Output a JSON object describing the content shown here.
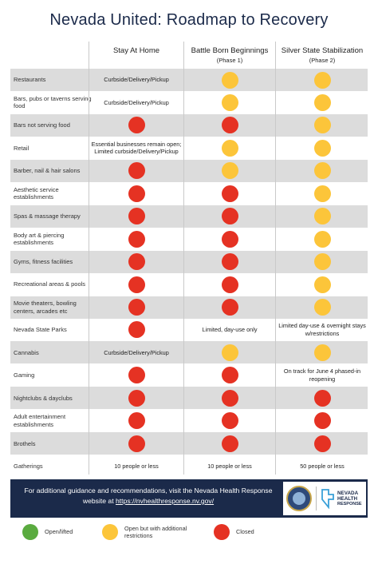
{
  "title": "Nevada United: Roadmap to Recovery",
  "columns": [
    {
      "main": "Stay At Home",
      "sub": ""
    },
    {
      "main": "Battle Born Beginnings",
      "sub": "(Phase 1)"
    },
    {
      "main": "Silver State Stabilization",
      "sub": "(Phase 2)"
    }
  ],
  "colors": {
    "red": "#e53223",
    "yellow": "#fcc53a",
    "green": "#5aab3f",
    "navy": "#1b2a4a"
  },
  "rows": [
    {
      "label": "Restaurants",
      "cells": [
        {
          "text": "Curbside/Delivery/Pickup"
        },
        {
          "dot": "yellow"
        },
        {
          "dot": "yellow"
        }
      ]
    },
    {
      "label": "Bars, pubs or taverns serving food",
      "cells": [
        {
          "text": "Curbside/Delivery/Pickup"
        },
        {
          "dot": "yellow"
        },
        {
          "dot": "yellow"
        }
      ]
    },
    {
      "label": "Bars not serving food",
      "cells": [
        {
          "dot": "red"
        },
        {
          "dot": "red"
        },
        {
          "dot": "yellow"
        }
      ]
    },
    {
      "label": "Retail",
      "cells": [
        {
          "text": "Essential businesses remain open; Limited curbside/Delivery/Pickup"
        },
        {
          "dot": "yellow"
        },
        {
          "dot": "yellow"
        }
      ]
    },
    {
      "label": "Barber, nail & hair salons",
      "cells": [
        {
          "dot": "red"
        },
        {
          "dot": "yellow"
        },
        {
          "dot": "yellow"
        }
      ]
    },
    {
      "label": "Aesthetic service establishments",
      "cells": [
        {
          "dot": "red"
        },
        {
          "dot": "red"
        },
        {
          "dot": "yellow"
        }
      ]
    },
    {
      "label": "Spas & massage therapy",
      "cells": [
        {
          "dot": "red"
        },
        {
          "dot": "red"
        },
        {
          "dot": "yellow"
        }
      ]
    },
    {
      "label": "Body art & piercing establishments",
      "cells": [
        {
          "dot": "red"
        },
        {
          "dot": "red"
        },
        {
          "dot": "yellow"
        }
      ]
    },
    {
      "label": "Gyms, fitness facilities",
      "cells": [
        {
          "dot": "red"
        },
        {
          "dot": "red"
        },
        {
          "dot": "yellow"
        }
      ]
    },
    {
      "label": "Recreational areas & pools",
      "cells": [
        {
          "dot": "red"
        },
        {
          "dot": "red"
        },
        {
          "dot": "yellow"
        }
      ]
    },
    {
      "label": "Movie theaters, bowling centers, arcades etc",
      "cells": [
        {
          "dot": "red"
        },
        {
          "dot": "red"
        },
        {
          "dot": "yellow"
        }
      ]
    },
    {
      "label": "Nevada State Parks",
      "cells": [
        {
          "dot": "red"
        },
        {
          "text": "Limited, day-use only"
        },
        {
          "text": "Limited day-use & overnight stays w/restrictions"
        }
      ]
    },
    {
      "label": "Cannabis",
      "cells": [
        {
          "text": "Curbside/Delivery/Pickup"
        },
        {
          "dot": "yellow"
        },
        {
          "dot": "yellow"
        }
      ]
    },
    {
      "label": "Gaming",
      "cells": [
        {
          "dot": "red"
        },
        {
          "dot": "red"
        },
        {
          "text": "On track for June 4 phased-in reopening"
        }
      ]
    },
    {
      "label": "Nightclubs & dayclubs",
      "cells": [
        {
          "dot": "red"
        },
        {
          "dot": "red"
        },
        {
          "dot": "red"
        }
      ]
    },
    {
      "label": "Adult entertainment establishments",
      "cells": [
        {
          "dot": "red"
        },
        {
          "dot": "red"
        },
        {
          "dot": "red"
        }
      ]
    },
    {
      "label": "Brothels",
      "cells": [
        {
          "dot": "red"
        },
        {
          "dot": "red"
        },
        {
          "dot": "red"
        }
      ]
    },
    {
      "label": "Gatherings",
      "cells": [
        {
          "text": "10 people or less"
        },
        {
          "text": "10 people or less"
        },
        {
          "text": "50 people or less"
        }
      ]
    }
  ],
  "footer": {
    "line1": "For additional guidance and recommendations, visit the Nevada Health Response",
    "line2_prefix": "website at ",
    "url": "https://nvhealthresponse.nv.gov/",
    "logo_line1": "NEVADA",
    "logo_line2": "HEALTH",
    "logo_line3": "RESPONSE",
    "seal_icon": "state-seal-icon",
    "cross_icon": "health-cross-icon"
  },
  "legend": [
    {
      "color": "green",
      "label": "Open/lifted"
    },
    {
      "color": "yellow",
      "label": "Open but with additional restrictions"
    },
    {
      "color": "red",
      "label": "Closed"
    }
  ]
}
